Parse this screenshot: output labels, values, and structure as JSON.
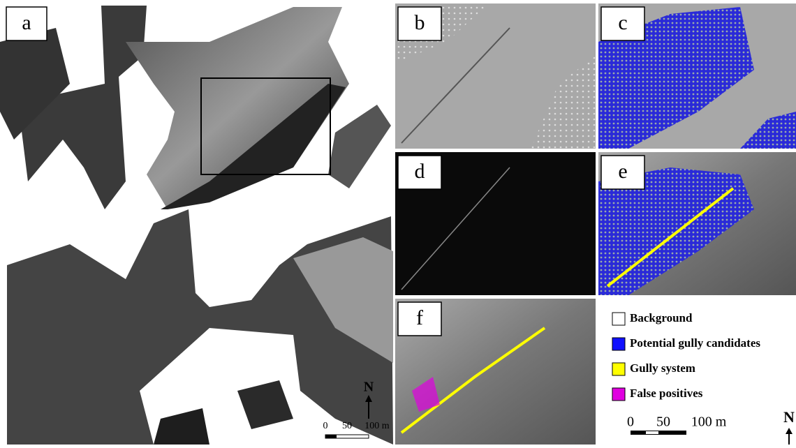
{
  "panels": [
    {
      "label": "a"
    },
    {
      "label": "b"
    },
    {
      "label": "c"
    },
    {
      "label": "d"
    },
    {
      "label": "e"
    },
    {
      "label": "f"
    }
  ],
  "legend": [
    {
      "label": "Background",
      "color": "#ffffff"
    },
    {
      "label": "Potential gully candidates",
      "color": "#1010ff"
    },
    {
      "label": "Gully system",
      "color": "#ffff00"
    },
    {
      "label": "False positives",
      "color": "#e000e0"
    }
  ],
  "scale_bar_a": {
    "labels": [
      "0",
      "50",
      "100 m"
    ]
  },
  "scale_bar_legend": {
    "labels": [
      "0",
      "50",
      "100 m"
    ]
  },
  "north_a": "N",
  "north_legend": "N"
}
